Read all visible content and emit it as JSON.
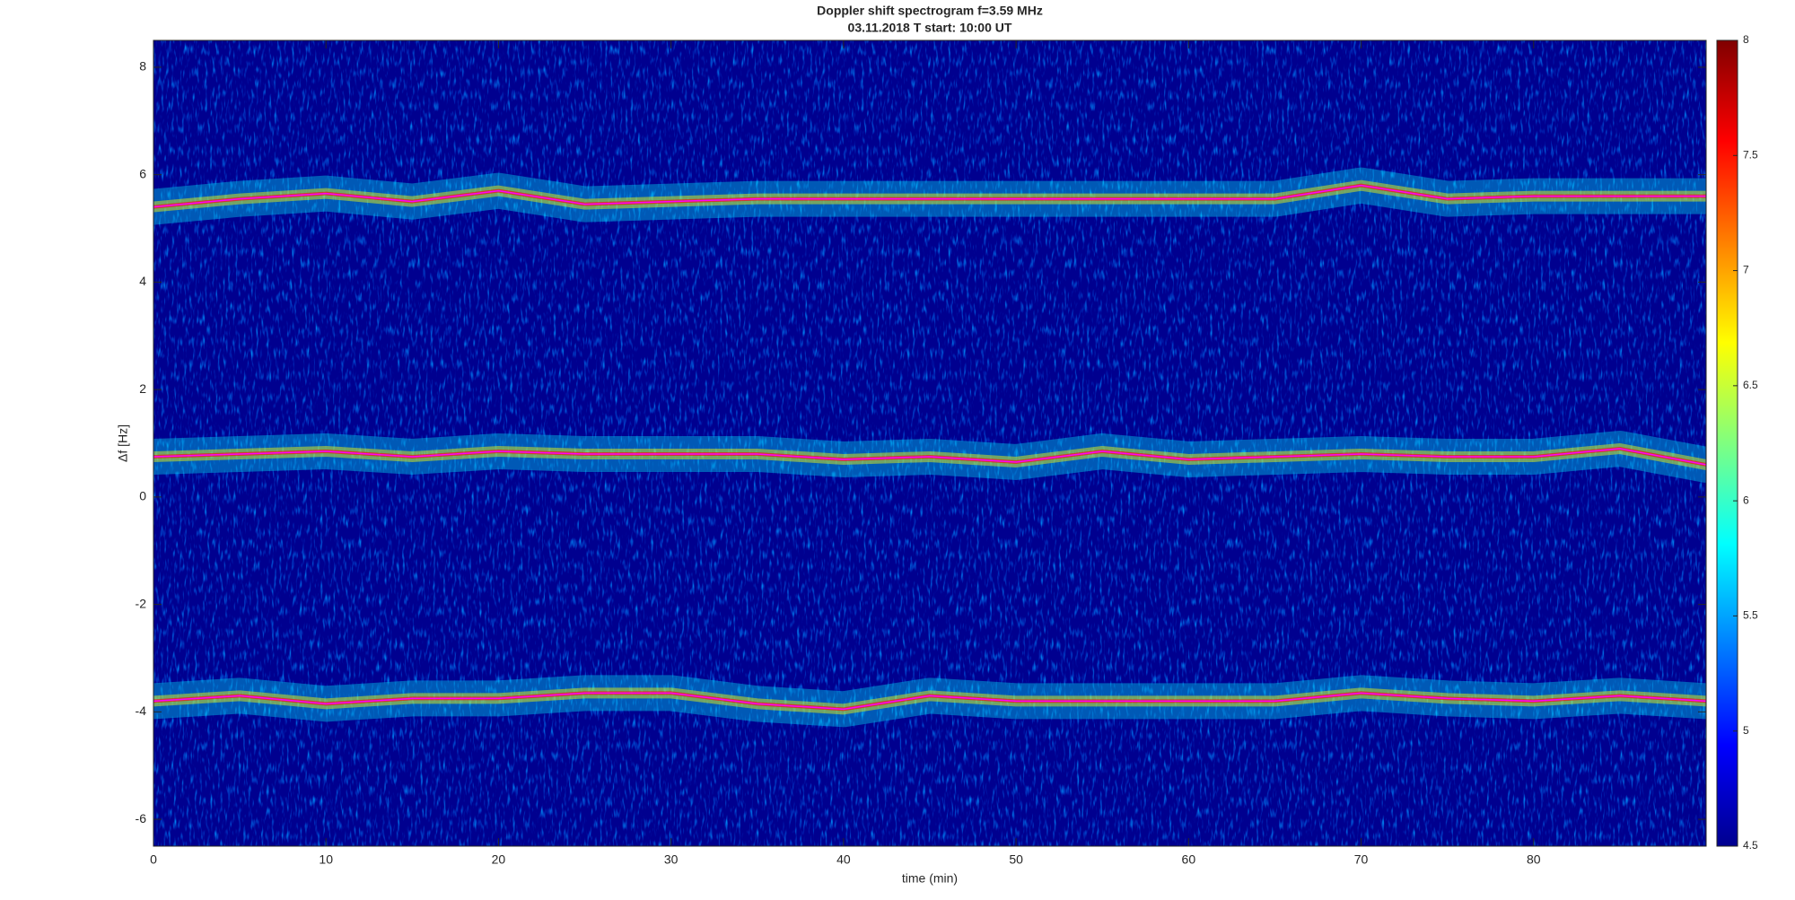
{
  "chart_data": {
    "type": "spectrogram",
    "title": "Doppler shift spectrogram f=3.59 MHz",
    "subtitle": "03.11.2018   T start: 10:00 UT",
    "xlabel": "time (min)",
    "ylabel": "Δf [Hz]",
    "xlim": [
      0,
      90
    ],
    "xticks": [
      0,
      10,
      20,
      30,
      40,
      50,
      60,
      70,
      80
    ],
    "ylim": [
      -6.5,
      8.5
    ],
    "yticks": [
      -6,
      -4,
      -2,
      0,
      2,
      4,
      6,
      8
    ],
    "colormap": "jet",
    "clim": [
      4.5,
      8
    ],
    "cticks": [
      4.5,
      5,
      5.5,
      6,
      6.5,
      7,
      7.5,
      8
    ],
    "grid": false,
    "x": [
      0,
      5,
      10,
      15,
      20,
      25,
      30,
      35,
      40,
      45,
      50,
      55,
      60,
      65,
      70,
      75,
      80,
      85,
      90
    ],
    "series": [
      {
        "color": "#ff00ff",
        "values": [
          5.4,
          5.55,
          5.65,
          5.5,
          5.7,
          5.45,
          5.5,
          5.55,
          5.55,
          5.55,
          5.55,
          5.55,
          5.55,
          5.55,
          5.8,
          5.55,
          5.6,
          5.6,
          5.6
        ]
      },
      {
        "color": "#ff00ff",
        "values": [
          0.75,
          0.8,
          0.85,
          0.75,
          0.85,
          0.8,
          0.8,
          0.8,
          0.7,
          0.75,
          0.65,
          0.85,
          0.7,
          0.75,
          0.8,
          0.75,
          0.75,
          0.9,
          0.6
        ]
      },
      {
        "color": "#ff00ff",
        "values": [
          -3.8,
          -3.7,
          -3.85,
          -3.75,
          -3.75,
          -3.65,
          -3.65,
          -3.85,
          -3.95,
          -3.7,
          -3.8,
          -3.8,
          -3.8,
          -3.8,
          -3.65,
          -3.75,
          -3.8,
          -3.7,
          -3.8
        ]
      }
    ]
  }
}
